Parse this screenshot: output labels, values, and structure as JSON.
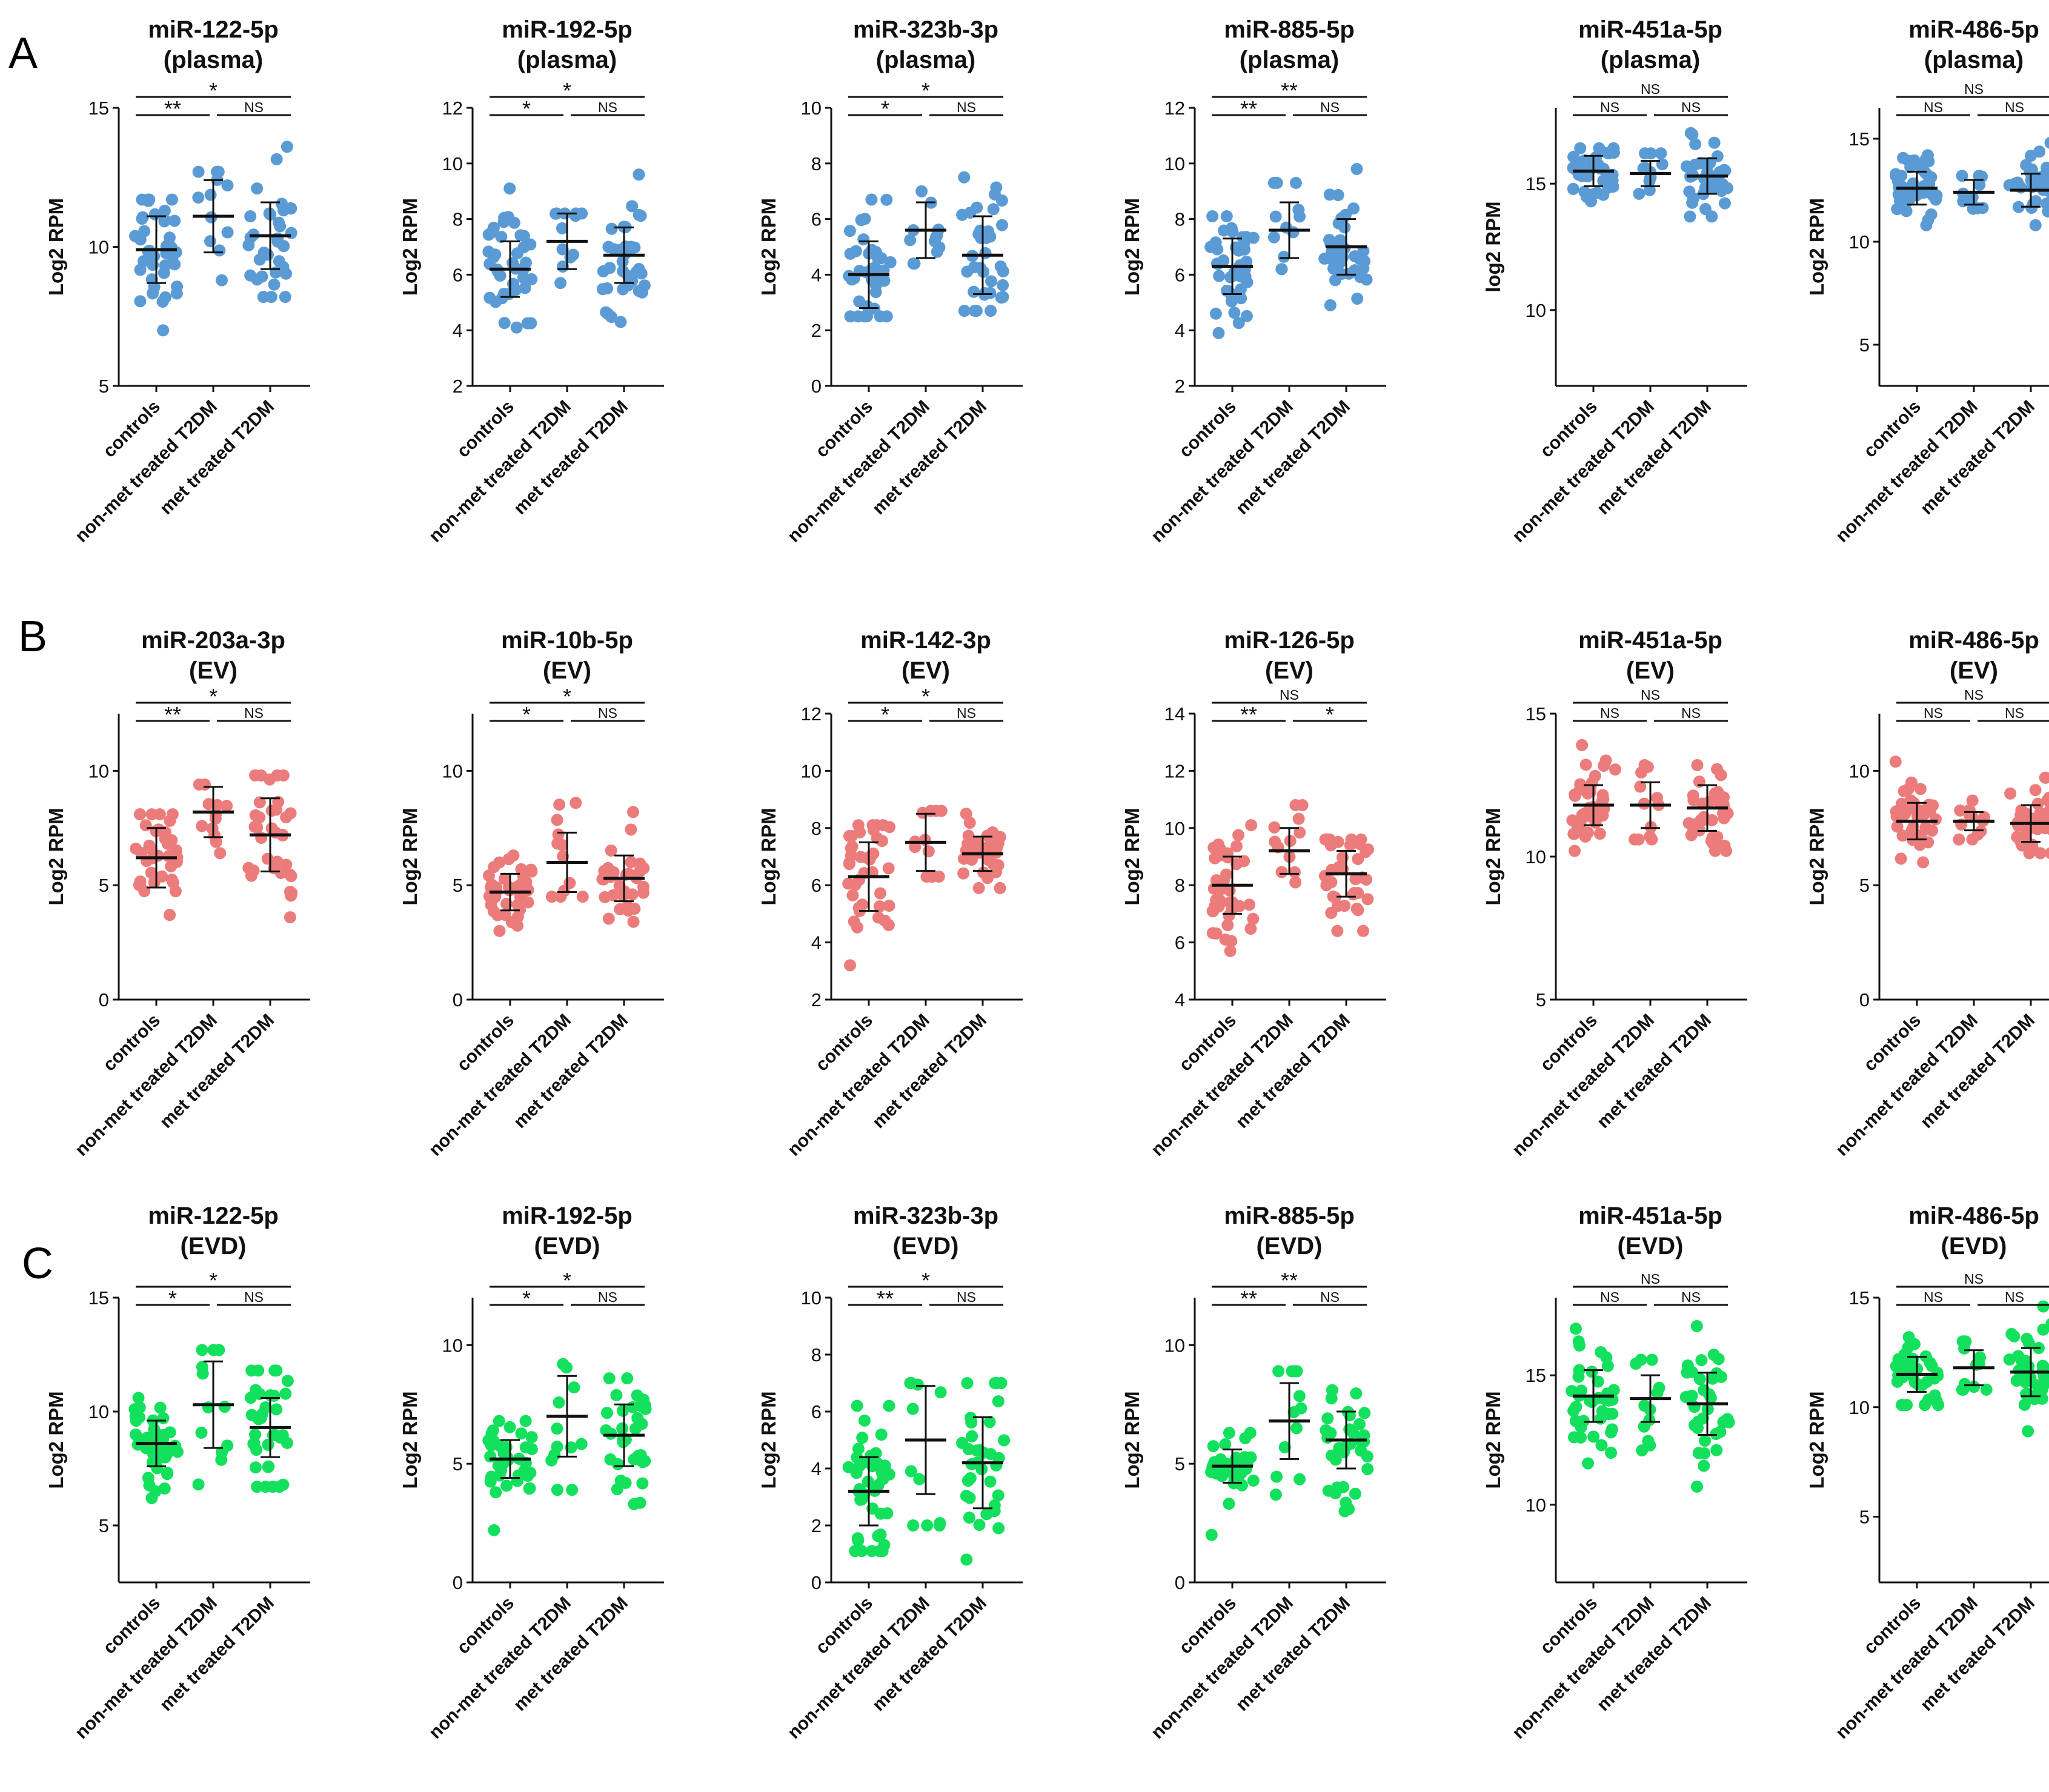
{
  "figure": {
    "panel_labels": [
      "A",
      "B",
      "C"
    ],
    "colors": {
      "plasma": "#5B9BD5",
      "EV": "#EC7C7C",
      "EVD": "#13E05C"
    },
    "categories": [
      "controls",
      "non-met treated T2DM",
      "met treated T2DM"
    ],
    "ylabel": "Log2 RPM"
  },
  "chart_data": [
    {
      "type": "scatter",
      "panel": "A",
      "title": [
        "miR-122-5p",
        "(plasma)"
      ],
      "ylabel": "Log2 RPM",
      "ylim": [
        5,
        15
      ],
      "yticks": [
        5,
        10,
        15
      ],
      "categories": [
        "controls",
        "non-met treated T2DM",
        "met treated T2DM"
      ],
      "means": [
        9.9,
        11.1,
        10.4
      ],
      "sd": [
        1.2,
        1.3,
        1.2
      ],
      "range": [
        [
          7.0,
          11.7
        ],
        [
          8.8,
          12.7
        ],
        [
          8.2,
          13.6
        ]
      ],
      "n": [
        40,
        12,
        35
      ],
      "sig": {
        "c_vs_nonmet": "**",
        "nonmet_vs_met": "NS",
        "c_vs_met": "*"
      }
    },
    {
      "type": "scatter",
      "panel": "A",
      "title": [
        "miR-192-5p",
        "(plasma)"
      ],
      "ylabel": "Log2 RPM",
      "ylim": [
        2,
        12
      ],
      "yticks": [
        2,
        4,
        6,
        8,
        10,
        12
      ],
      "categories": [
        "controls",
        "non-met treated T2DM",
        "met treated T2DM"
      ],
      "means": [
        6.2,
        7.2,
        6.7
      ],
      "sd": [
        1.0,
        1.0,
        1.0
      ],
      "range": [
        [
          4.1,
          9.1
        ],
        [
          5.7,
          8.2
        ],
        [
          4.3,
          9.6
        ]
      ],
      "n": [
        40,
        12,
        35
      ],
      "sig": {
        "c_vs_nonmet": "*",
        "nonmet_vs_met": "NS",
        "c_vs_met": "*"
      }
    },
    {
      "type": "scatter",
      "panel": "A",
      "title": [
        "miR-323b-3p",
        "(plasma)"
      ],
      "ylabel": "Log2 RPM",
      "ylim": [
        0,
        10
      ],
      "yticks": [
        0,
        2,
        4,
        6,
        8,
        10
      ],
      "categories": [
        "controls",
        "non-met treated T2DM",
        "met treated T2DM"
      ],
      "means": [
        4.0,
        5.6,
        4.7
      ],
      "sd": [
        1.2,
        1.0,
        1.4
      ],
      "range": [
        [
          2.5,
          6.7
        ],
        [
          4.4,
          7.0
        ],
        [
          2.7,
          7.5
        ]
      ],
      "n": [
        40,
        12,
        35
      ],
      "sig": {
        "c_vs_nonmet": "*",
        "nonmet_vs_met": "NS",
        "c_vs_met": "*"
      }
    },
    {
      "type": "scatter",
      "panel": "A",
      "title": [
        "miR-885-5p",
        "(plasma)"
      ],
      "ylabel": "Log2 RPM",
      "ylim": [
        2,
        12
      ],
      "yticks": [
        2,
        4,
        6,
        8,
        10,
        12
      ],
      "categories": [
        "controls",
        "non-met treated T2DM",
        "met treated T2DM"
      ],
      "means": [
        6.3,
        7.6,
        7.0
      ],
      "sd": [
        1.0,
        1.0,
        1.0
      ],
      "range": [
        [
          3.9,
          8.1
        ],
        [
          6.2,
          9.3
        ],
        [
          4.9,
          9.8
        ]
      ],
      "n": [
        40,
        12,
        35
      ],
      "sig": {
        "c_vs_nonmet": "**",
        "nonmet_vs_met": "NS",
        "c_vs_met": "**"
      }
    },
    {
      "type": "scatter",
      "panel": "A",
      "title": [
        "miR-451a-5p",
        "(plasma)"
      ],
      "ylabel": "log2 RPM",
      "ylim": [
        7,
        18
      ],
      "yticks": [
        10,
        15
      ],
      "categories": [
        "controls",
        "non-met treated T2DM",
        "met treated T2DM"
      ],
      "means": [
        15.5,
        15.4,
        15.3
      ],
      "sd": [
        0.6,
        0.5,
        0.7
      ],
      "range": [
        [
          14.3,
          16.4
        ],
        [
          14.6,
          16.2
        ],
        [
          13.7,
          17.0
        ]
      ],
      "n": [
        40,
        12,
        35
      ],
      "sig": {
        "c_vs_nonmet": "NS",
        "nonmet_vs_met": "NS",
        "c_vs_met": "NS"
      }
    },
    {
      "type": "scatter",
      "panel": "A",
      "title": [
        "miR-486-5p",
        "(plasma)"
      ],
      "ylabel": "Log2 RPM",
      "ylim": [
        3,
        16.5
      ],
      "yticks": [
        5,
        10,
        15
      ],
      "categories": [
        "controls",
        "non-met treated T2DM",
        "met treated T2DM"
      ],
      "means": [
        12.6,
        12.4,
        12.5
      ],
      "sd": [
        0.8,
        0.6,
        0.8
      ],
      "range": [
        [
          10.8,
          14.2
        ],
        [
          11.6,
          13.2
        ],
        [
          10.8,
          14.8
        ]
      ],
      "n": [
        40,
        12,
        35
      ],
      "sig": {
        "c_vs_nonmet": "NS",
        "nonmet_vs_met": "NS",
        "c_vs_met": "NS"
      }
    },
    {
      "type": "scatter",
      "panel": "B",
      "title": [
        "miR-203a-3p",
        "(EV)"
      ],
      "ylabel": "Log2 RPM",
      "ylim": [
        0,
        12.5
      ],
      "yticks": [
        0,
        5,
        10
      ],
      "categories": [
        "controls",
        "non-met treated T2DM",
        "met treated T2DM"
      ],
      "means": [
        6.2,
        8.2,
        7.2
      ],
      "sd": [
        1.3,
        1.1,
        1.6
      ],
      "range": [
        [
          3.7,
          8.1
        ],
        [
          6.4,
          9.4
        ],
        [
          3.6,
          9.8
        ]
      ],
      "n": [
        40,
        12,
        35
      ],
      "sig": {
        "c_vs_nonmet": "**",
        "nonmet_vs_met": "NS",
        "c_vs_met": "*"
      }
    },
    {
      "type": "scatter",
      "panel": "B",
      "title": [
        "miR-10b-5p",
        "(EV)"
      ],
      "ylabel": "Log2 RPM",
      "ylim": [
        0,
        12.5
      ],
      "yticks": [
        0,
        5,
        10
      ],
      "categories": [
        "controls",
        "non-met treated T2DM",
        "met treated T2DM"
      ],
      "means": [
        4.7,
        6.0,
        5.3
      ],
      "sd": [
        0.8,
        1.3,
        1.0
      ],
      "range": [
        [
          3.0,
          6.3
        ],
        [
          4.5,
          8.6
        ],
        [
          3.4,
          8.2
        ]
      ],
      "n": [
        40,
        12,
        35
      ],
      "sig": {
        "c_vs_nonmet": "*",
        "nonmet_vs_met": "NS",
        "c_vs_met": "*"
      }
    },
    {
      "type": "scatter",
      "panel": "B",
      "title": [
        "miR-142-3p",
        "(EV)"
      ],
      "ylabel": "Log2 RPM",
      "ylim": [
        2,
        12
      ],
      "yticks": [
        2,
        4,
        6,
        8,
        10,
        12
      ],
      "categories": [
        "controls",
        "non-met treated T2DM",
        "met treated T2DM"
      ],
      "means": [
        6.3,
        7.5,
        7.1
      ],
      "sd": [
        1.2,
        1.0,
        0.6
      ],
      "range": [
        [
          3.2,
          8.1
        ],
        [
          6.3,
          8.6
        ],
        [
          5.9,
          8.5
        ]
      ],
      "n": [
        40,
        12,
        35
      ],
      "sig": {
        "c_vs_nonmet": "*",
        "nonmet_vs_met": "NS",
        "c_vs_met": "*"
      }
    },
    {
      "type": "scatter",
      "panel": "B",
      "title": [
        "miR-126-5p",
        "(EV)"
      ],
      "ylabel": "Log2 RPM",
      "ylim": [
        4,
        14
      ],
      "yticks": [
        4,
        6,
        8,
        10,
        12,
        14
      ],
      "categories": [
        "controls",
        "non-met treated T2DM",
        "met treated T2DM"
      ],
      "means": [
        8.0,
        9.2,
        8.4
      ],
      "sd": [
        1.0,
        0.8,
        0.8
      ],
      "range": [
        [
          5.7,
          10.1
        ],
        [
          8.1,
          10.8
        ],
        [
          6.4,
          9.6
        ]
      ],
      "n": [
        40,
        12,
        35
      ],
      "sig": {
        "c_vs_nonmet": "**",
        "nonmet_vs_met": "*",
        "c_vs_met": "NS"
      }
    },
    {
      "type": "scatter",
      "panel": "B",
      "title": [
        "miR-451a-5p",
        "(EV)"
      ],
      "ylabel": "Log2 RPM",
      "ylim": [
        5,
        15
      ],
      "yticks": [
        5,
        10,
        15
      ],
      "categories": [
        "controls",
        "non-met treated T2DM",
        "met treated T2DM"
      ],
      "means": [
        11.8,
        11.8,
        11.7
      ],
      "sd": [
        0.7,
        0.8,
        0.8
      ],
      "range": [
        [
          10.2,
          13.9
        ],
        [
          10.6,
          13.2
        ],
        [
          10.2,
          13.2
        ]
      ],
      "n": [
        40,
        12,
        35
      ],
      "sig": {
        "c_vs_nonmet": "NS",
        "nonmet_vs_met": "NS",
        "c_vs_met": "NS"
      }
    },
    {
      "type": "scatter",
      "panel": "B",
      "title": [
        "miR-486-5p",
        "(EV)"
      ],
      "ylabel": "Log2 RPM",
      "ylim": [
        0,
        12.5
      ],
      "yticks": [
        0,
        5,
        10
      ],
      "categories": [
        "controls",
        "non-met treated T2DM",
        "met treated T2DM"
      ],
      "means": [
        7.8,
        7.8,
        7.7
      ],
      "sd": [
        0.8,
        0.4,
        0.8
      ],
      "range": [
        [
          6.0,
          10.4
        ],
        [
          7.0,
          8.7
        ],
        [
          6.4,
          9.7
        ]
      ],
      "n": [
        40,
        12,
        35
      ],
      "sig": {
        "c_vs_nonmet": "NS",
        "nonmet_vs_met": "NS",
        "c_vs_met": "NS"
      }
    },
    {
      "type": "scatter",
      "panel": "C",
      "title": [
        "miR-122-5p",
        "(EVD)"
      ],
      "ylabel": "Log2 RPM",
      "ylim": [
        2.5,
        15
      ],
      "yticks": [
        5,
        10,
        15
      ],
      "categories": [
        "controls",
        "non-met treated T2DM",
        "met treated T2DM"
      ],
      "means": [
        8.6,
        10.3,
        9.3
      ],
      "sd": [
        1.0,
        1.9,
        1.3
      ],
      "range": [
        [
          6.2,
          10.6
        ],
        [
          6.8,
          12.7
        ],
        [
          6.7,
          11.8
        ]
      ],
      "n": [
        40,
        12,
        35
      ],
      "sig": {
        "c_vs_nonmet": "*",
        "nonmet_vs_met": "NS",
        "c_vs_met": "*"
      }
    },
    {
      "type": "scatter",
      "panel": "C",
      "title": [
        "miR-192-5p",
        "(EVD)"
      ],
      "ylabel": "Log2 RPM",
      "ylim": [
        0,
        12
      ],
      "yticks": [
        0,
        5,
        10
      ],
      "categories": [
        "controls",
        "non-met treated T2DM",
        "met treated T2DM"
      ],
      "means": [
        5.2,
        7.0,
        6.2
      ],
      "sd": [
        0.8,
        1.7,
        1.3
      ],
      "range": [
        [
          2.2,
          6.8
        ],
        [
          3.9,
          9.2
        ],
        [
          3.3,
          8.6
        ]
      ],
      "n": [
        40,
        12,
        35
      ],
      "sig": {
        "c_vs_nonmet": "*",
        "nonmet_vs_met": "NS",
        "c_vs_met": "*"
      }
    },
    {
      "type": "scatter",
      "panel": "C",
      "title": [
        "miR-323b-3p",
        "(EVD)"
      ],
      "ylabel": "Log2 RPM",
      "ylim": [
        0,
        10
      ],
      "yticks": [
        0,
        2,
        4,
        6,
        8,
        10
      ],
      "categories": [
        "controls",
        "non-met treated T2DM",
        "met treated T2DM"
      ],
      "means": [
        3.2,
        5.0,
        4.2
      ],
      "sd": [
        1.2,
        1.9,
        1.6
      ],
      "range": [
        [
          1.1,
          6.2
        ],
        [
          2.0,
          7.0
        ],
        [
          0.8,
          7.0
        ]
      ],
      "n": [
        40,
        12,
        35
      ],
      "sig": {
        "c_vs_nonmet": "**",
        "nonmet_vs_met": "NS",
        "c_vs_met": "*"
      }
    },
    {
      "type": "scatter",
      "panel": "C",
      "title": [
        "miR-885-5p",
        "(EVD)"
      ],
      "ylabel": "Log2 RPM",
      "ylim": [
        0,
        12
      ],
      "yticks": [
        0,
        5,
        10
      ],
      "categories": [
        "controls",
        "non-met treated T2DM",
        "met treated T2DM"
      ],
      "means": [
        4.9,
        6.8,
        6.0
      ],
      "sd": [
        0.7,
        1.6,
        1.2
      ],
      "range": [
        [
          2.0,
          6.3
        ],
        [
          3.7,
          8.9
        ],
        [
          3.0,
          8.1
        ]
      ],
      "n": [
        40,
        12,
        35
      ],
      "sig": {
        "c_vs_nonmet": "**",
        "nonmet_vs_met": "NS",
        "c_vs_met": "**"
      }
    },
    {
      "type": "scatter",
      "panel": "C",
      "title": [
        "miR-451a-5p",
        "(EVD)"
      ],
      "ylabel": "Log2 RPM",
      "ylim": [
        7,
        18
      ],
      "yticks": [
        10,
        15
      ],
      "categories": [
        "controls",
        "non-met treated T2DM",
        "met treated T2DM"
      ],
      "means": [
        14.2,
        14.1,
        13.9
      ],
      "sd": [
        1.0,
        0.9,
        1.2
      ],
      "range": [
        [
          11.6,
          16.8
        ],
        [
          12.1,
          15.6
        ],
        [
          10.7,
          16.9
        ]
      ],
      "n": [
        40,
        12,
        35
      ],
      "sig": {
        "c_vs_nonmet": "NS",
        "nonmet_vs_met": "NS",
        "c_vs_met": "NS"
      }
    },
    {
      "type": "scatter",
      "panel": "C",
      "title": [
        "miR-486-5p",
        "(EVD)"
      ],
      "ylabel": "Log2 RPM",
      "ylim": [
        2,
        15
      ],
      "yticks": [
        5,
        10,
        15
      ],
      "categories": [
        "controls",
        "non-met treated T2DM",
        "met treated T2DM"
      ],
      "means": [
        11.5,
        11.8,
        11.6
      ],
      "sd": [
        0.8,
        0.8,
        1.1
      ],
      "range": [
        [
          10.1,
          13.2
        ],
        [
          10.8,
          13.0
        ],
        [
          8.9,
          14.6
        ]
      ],
      "n": [
        40,
        12,
        35
      ],
      "sig": {
        "c_vs_nonmet": "NS",
        "nonmet_vs_met": "NS",
        "c_vs_met": "NS"
      }
    }
  ]
}
